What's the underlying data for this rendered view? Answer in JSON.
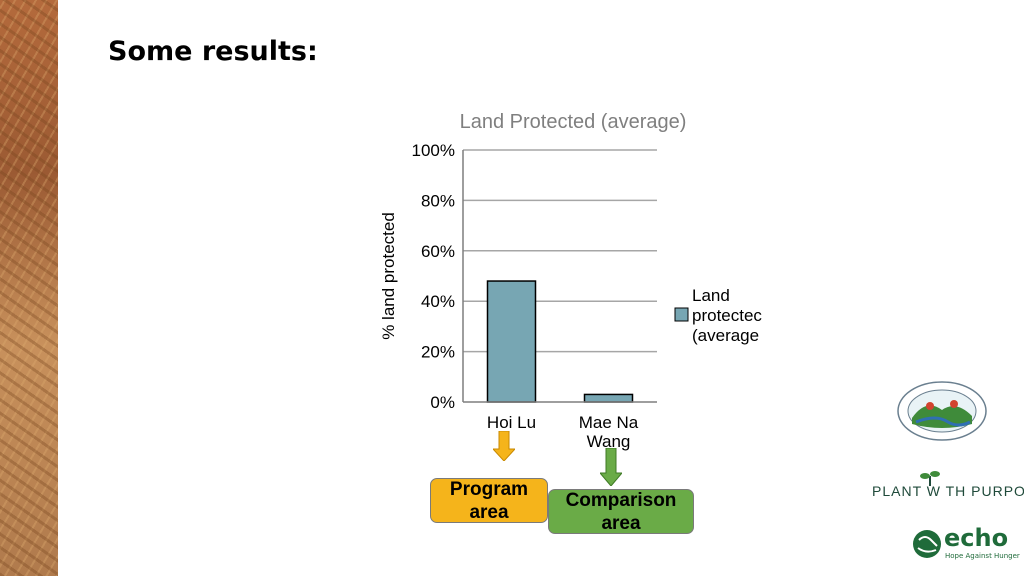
{
  "slide": {
    "title": "Some results:"
  },
  "chart_data": {
    "type": "bar",
    "title": "Land Protected (average)",
    "ylabel": "% land protected",
    "xlabel": "",
    "categories": [
      "Hoi Lu",
      "Mae Na\nWang"
    ],
    "series": [
      {
        "name": "Land\nprotectec\n(average",
        "values": [
          48,
          3
        ]
      }
    ],
    "ylim": [
      0,
      100
    ],
    "yticks": [
      0,
      20,
      40,
      60,
      80,
      100
    ],
    "ytick_labels": [
      "0%",
      "20%",
      "40%",
      "60%",
      "80%",
      "100%"
    ],
    "grid": true,
    "legend": "right",
    "bar_color": "#77a6b3"
  },
  "callouts": {
    "program": "Program\narea",
    "comparison": "Comparison\narea"
  },
  "colors": {
    "program": "#f5b41b",
    "comparison": "#6aab47"
  },
  "logos": {
    "plant_with_purpose": "PLANT W TH PURPOSE",
    "echo": "echo",
    "echo_tagline": "Hope Against Hunger"
  }
}
